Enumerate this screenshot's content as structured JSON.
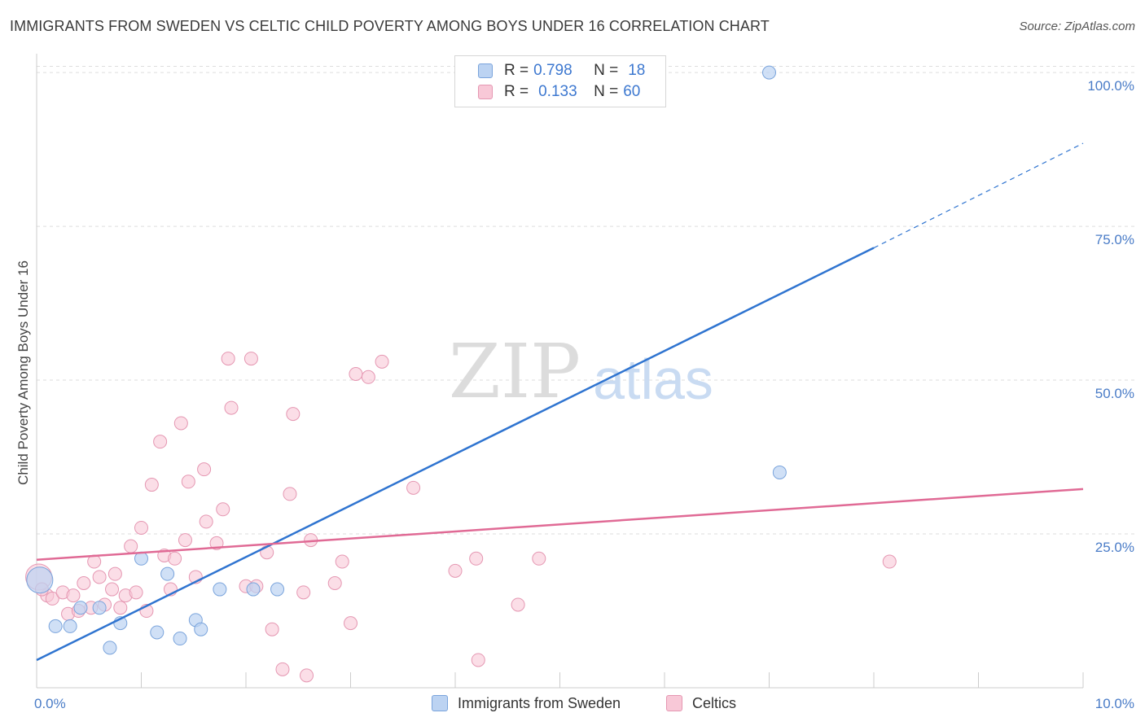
{
  "title": "IMMIGRANTS FROM SWEDEN VS CELTIC CHILD POVERTY AMONG BOYS UNDER 16 CORRELATION CHART",
  "source": "Source: ZipAtlas.com",
  "watermark": {
    "zip": "ZIP",
    "atlas": "atlas"
  },
  "legend": {
    "r_label": "R =",
    "n_label": "N =",
    "series": [
      {
        "r": "0.798",
        "n": "18"
      },
      {
        "r": "0.133",
        "n": "60"
      }
    ]
  },
  "colors": {
    "sweden_fill": "#bcd3f2",
    "sweden_stroke": "#7aa4dc",
    "sweden_line": "#2f74d0",
    "celtic_fill": "#f8c8d7",
    "celtic_stroke": "#e597b2",
    "celtic_line": "#e06a95",
    "tick_text": "#4a7cc7",
    "grid": "#dddddd"
  },
  "chart_data": {
    "type": "scatter",
    "title": "IMMIGRANTS FROM SWEDEN VS CELTIC CHILD POVERTY AMONG BOYS UNDER 16 CORRELATION CHART",
    "xlabel": "",
    "ylabel": "Child Poverty Among Boys Under 16",
    "xlim": [
      0,
      10
    ],
    "ylim": [
      0,
      102
    ],
    "x_tick_labels": [
      {
        "value": 0,
        "label": "0.0%"
      },
      {
        "value": 10,
        "label": "10.0%"
      }
    ],
    "y_tick_labels": [
      {
        "value": 25,
        "label": "25.0%"
      },
      {
        "value": 50,
        "label": "50.0%"
      },
      {
        "value": 75,
        "label": "75.0%"
      },
      {
        "value": 100,
        "label": "100.0%"
      }
    ],
    "x_minor_ticks": [
      0,
      1,
      2,
      3,
      4,
      5,
      6,
      7,
      8,
      9,
      10
    ],
    "series": [
      {
        "name": "Immigrants from Sweden",
        "r": 0.798,
        "n": 18,
        "trend": {
          "x0": 0,
          "y0": 4.5,
          "x1": 8.0,
          "y1": 71.5,
          "dash_to_x": 10.0,
          "dash_to_y": 88.5
        },
        "points": [
          [
            0.03,
            17.5
          ],
          [
            0.18,
            10.0
          ],
          [
            0.32,
            10.0
          ],
          [
            0.42,
            13.0
          ],
          [
            0.6,
            13.0
          ],
          [
            0.7,
            6.5
          ],
          [
            0.8,
            10.5
          ],
          [
            1.0,
            21.0
          ],
          [
            1.15,
            9.0
          ],
          [
            1.25,
            18.5
          ],
          [
            1.37,
            8.0
          ],
          [
            1.52,
            11.0
          ],
          [
            1.57,
            9.5
          ],
          [
            1.75,
            16.0
          ],
          [
            2.07,
            16.0
          ],
          [
            2.3,
            16.0
          ],
          [
            7.0,
            100.0
          ],
          [
            7.1,
            35.0
          ]
        ]
      },
      {
        "name": "Celtics",
        "r": 0.133,
        "n": 60,
        "trend": {
          "x0": 0,
          "y0": 20.8,
          "x1": 10.0,
          "y1": 32.3
        },
        "points": [
          [
            0.02,
            18.0
          ],
          [
            0.1,
            15.0
          ],
          [
            0.15,
            14.5
          ],
          [
            0.25,
            15.5
          ],
          [
            0.3,
            12.0
          ],
          [
            0.35,
            15.0
          ],
          [
            0.4,
            12.5
          ],
          [
            0.45,
            17.0
          ],
          [
            0.52,
            13.0
          ],
          [
            0.55,
            20.5
          ],
          [
            0.6,
            18.0
          ],
          [
            0.65,
            13.5
          ],
          [
            0.72,
            16.0
          ],
          [
            0.75,
            18.5
          ],
          [
            0.8,
            13.0
          ],
          [
            0.85,
            15.0
          ],
          [
            0.9,
            23.0
          ],
          [
            0.95,
            15.5
          ],
          [
            1.0,
            26.0
          ],
          [
            1.05,
            12.5
          ],
          [
            1.1,
            33.0
          ],
          [
            1.18,
            40.0
          ],
          [
            1.22,
            21.5
          ],
          [
            1.28,
            16.0
          ],
          [
            1.32,
            21.0
          ],
          [
            1.38,
            43.0
          ],
          [
            1.42,
            24.0
          ],
          [
            1.45,
            33.5
          ],
          [
            1.52,
            18.0
          ],
          [
            1.6,
            35.5
          ],
          [
            1.62,
            27.0
          ],
          [
            1.72,
            23.5
          ],
          [
            1.78,
            29.0
          ],
          [
            1.83,
            53.5
          ],
          [
            1.86,
            45.5
          ],
          [
            2.0,
            16.5
          ],
          [
            2.05,
            53.5
          ],
          [
            2.1,
            16.5
          ],
          [
            2.2,
            22.0
          ],
          [
            2.25,
            9.5
          ],
          [
            2.35,
            3.0
          ],
          [
            2.42,
            31.5
          ],
          [
            2.45,
            44.5
          ],
          [
            2.55,
            15.5
          ],
          [
            2.58,
            2.0
          ],
          [
            2.62,
            24.0
          ],
          [
            2.85,
            17.0
          ],
          [
            2.92,
            20.5
          ],
          [
            3.0,
            10.5
          ],
          [
            3.05,
            51.0
          ],
          [
            3.17,
            50.5
          ],
          [
            3.3,
            53.0
          ],
          [
            3.6,
            32.5
          ],
          [
            4.0,
            19.0
          ],
          [
            4.2,
            21.0
          ],
          [
            4.22,
            4.5
          ],
          [
            4.6,
            13.5
          ],
          [
            4.8,
            21.0
          ],
          [
            8.15,
            20.5
          ],
          [
            0.05,
            16.0
          ]
        ]
      }
    ],
    "legend_labels": [
      "Immigrants from Sweden",
      "Celtics"
    ]
  }
}
